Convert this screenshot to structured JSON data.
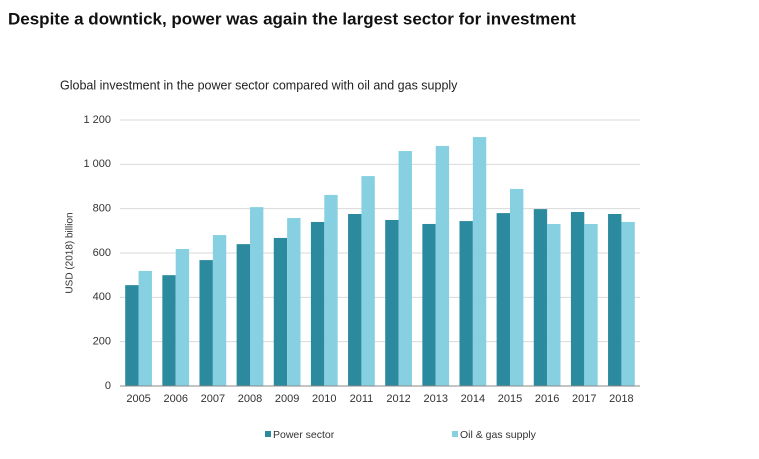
{
  "chart_data": {
    "type": "bar",
    "title": "Despite a downtick, power was again the largest sector for investment",
    "subtitle": "Global investment in the power sector compared with oil and gas supply",
    "y_label": "USD (2018) billion",
    "categories": [
      "2005",
      "2006",
      "2007",
      "2008",
      "2009",
      "2010",
      "2011",
      "2012",
      "2013",
      "2014",
      "2015",
      "2016",
      "2017",
      "2018"
    ],
    "series": [
      {
        "name": "Power sector",
        "color": "#2b8a9d",
        "values": [
          455,
          500,
          568,
          640,
          668,
          740,
          776,
          749,
          731,
          744,
          780,
          798,
          785,
          776
        ]
      },
      {
        "name": "Oil & gas supply",
        "color": "#86d0e1",
        "values": [
          519,
          618,
          681,
          807,
          758,
          862,
          947,
          1060,
          1083,
          1123,
          889,
          731,
          731,
          740
        ]
      }
    ],
    "ylim": [
      0,
      1200
    ],
    "yticks": [
      0,
      200,
      400,
      600,
      800,
      {
        "value": 1000,
        "label": "1 000"
      },
      {
        "value": 1200,
        "label": "1 200"
      }
    ],
    "grid": true,
    "legend": "bottom"
  }
}
